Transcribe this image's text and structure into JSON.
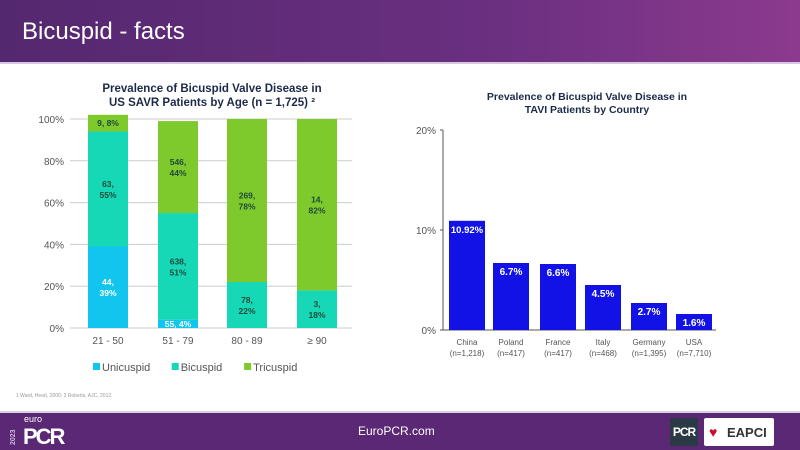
{
  "header": {
    "title": "Bicuspid - facts"
  },
  "chart_data": [
    {
      "type": "bar",
      "stacked": true,
      "title": "Prevalence of Bicuspid Valve Disease in US SAVR Patients by Age (n = 1,725) ²",
      "title_lines": [
        "Prevalence of Bicuspid Valve Disease in",
        "US SAVR Patients by Age (n = 1,725) ²"
      ],
      "categories": [
        "21 - 50",
        "51 - 79",
        "80 - 89",
        "≥ 90"
      ],
      "yticks": [
        "0%",
        "20%",
        "40%",
        "60%",
        "80%",
        "100%"
      ],
      "ylim": [
        0,
        100
      ],
      "grid": true,
      "legend": "bottom",
      "series": [
        {
          "name": "Unicuspid",
          "color": "#12c5ef",
          "values": [
            39,
            4,
            0,
            0
          ],
          "labels": [
            "44, 39%",
            "55, 4%",
            "",
            ""
          ]
        },
        {
          "name": "Bicuspid",
          "color": "#17d8b6",
          "values": [
            55,
            51,
            22,
            18
          ],
          "labels": [
            "63, 55%",
            "638, 51%",
            "78, 22%",
            "3, 18%"
          ]
        },
        {
          "name": "Tricuspid",
          "color": "#7ec92c",
          "values": [
            8,
            44,
            78,
            82
          ],
          "labels": [
            "9, 8%",
            "546, 44%",
            "269, 78%",
            "14, 82%"
          ]
        }
      ]
    },
    {
      "type": "bar",
      "title_lines": [
        "Prevalence of Bicuspid Valve Disease in",
        "TAVI Patients by Country"
      ],
      "categories": [
        "China",
        "Poland",
        "France",
        "Italy",
        "Germany",
        "USA"
      ],
      "sublabels": [
        "(n=1,218)",
        "(n=417)",
        "(n=417)",
        "(n=468)",
        "(n=1,395)",
        "(n=7,710)"
      ],
      "values": [
        10.92,
        6.7,
        6.6,
        4.5,
        2.7,
        1.6
      ],
      "labels": [
        "10.92%",
        "6.7%",
        "6.6%",
        "4.5%",
        "2.7%",
        "1.6%"
      ],
      "yticks": [
        "0%",
        "10%",
        "20%"
      ],
      "ylim": [
        0,
        20
      ],
      "color": "#1212e6"
    }
  ],
  "footnote": "1 Ward, Heart, 2000; 2 Roberts, AJC, 2012.",
  "footer": {
    "site": "EuroPCR.com",
    "logo_year": "2023",
    "logo_euro": "euro",
    "logo_pcr": "PCR",
    "pcr_badge": "PCR",
    "eapci": "EAPCI"
  }
}
